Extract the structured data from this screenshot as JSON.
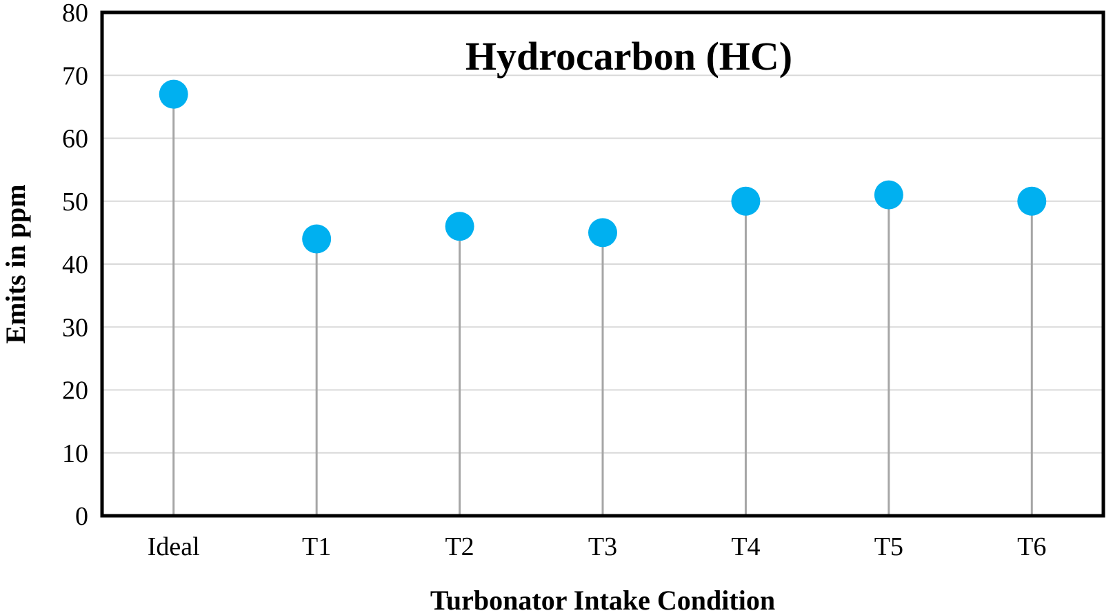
{
  "chart_data": {
    "type": "scatter",
    "style": "lollipop",
    "title": "Hydrocarbon (HC)",
    "xlabel": "Turbonator  Intake  Condition",
    "ylabel": "Emits  in ppm",
    "categories": [
      "Ideal",
      "T1",
      "T2",
      "T3",
      "T4",
      "T5",
      "T6"
    ],
    "values": [
      67,
      44,
      46,
      45,
      50,
      51,
      50
    ],
    "ylim": [
      0,
      80
    ],
    "yticks": [
      "0",
      "10",
      "20",
      "30",
      "40",
      "50",
      "60",
      "70",
      "80"
    ],
    "grid": true,
    "legend": "none",
    "colors": {
      "marker": "#00b0f0",
      "stem": "#a6a6a6",
      "grid": "#d9d9d9",
      "frame": "#000000"
    }
  }
}
